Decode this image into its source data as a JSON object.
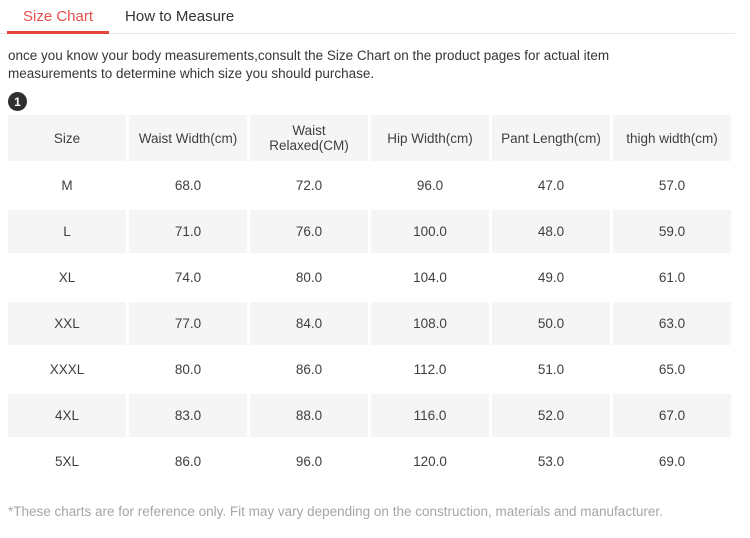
{
  "tabs": [
    {
      "label": "Size Chart",
      "active": true
    },
    {
      "label": "How to Measure",
      "active": false
    }
  ],
  "intro_text": "once you know your body measurements,consult the Size Chart on the product pages for actual item measurements to determine which size you should purchase.",
  "badge": "1",
  "table": {
    "columns": [
      "Size",
      "Waist Width(cm)",
      "Waist Relaxed(CM)",
      "Hip Width(cm)",
      "Pant Length(cm)",
      "thigh width(cm)"
    ],
    "rows": [
      [
        "M",
        "68.0",
        "72.0",
        "96.0",
        "47.0",
        "57.0"
      ],
      [
        "L",
        "71.0",
        "76.0",
        "100.0",
        "48.0",
        "59.0"
      ],
      [
        "XL",
        "74.0",
        "80.0",
        "104.0",
        "49.0",
        "61.0"
      ],
      [
        "XXL",
        "77.0",
        "84.0",
        "108.0",
        "50.0",
        "63.0"
      ],
      [
        "XXXL",
        "80.0",
        "86.0",
        "112.0",
        "51.0",
        "65.0"
      ],
      [
        "4XL",
        "83.0",
        "88.0",
        "116.0",
        "52.0",
        "67.0"
      ],
      [
        "5XL",
        "86.0",
        "96.0",
        "120.0",
        "53.0",
        "69.0"
      ]
    ]
  },
  "footnote": "*These charts are for reference only. Fit may vary depending on the construction, materials and manufacturer.",
  "colors": {
    "accent_text": "#e8504d",
    "accent_underline": "#e8443f",
    "stripe_bg": "#f5f5f5",
    "badge_bg": "#2f2f2f",
    "tab_border": "#e7e7e7",
    "footnote_text": "#a6a6a6"
  }
}
